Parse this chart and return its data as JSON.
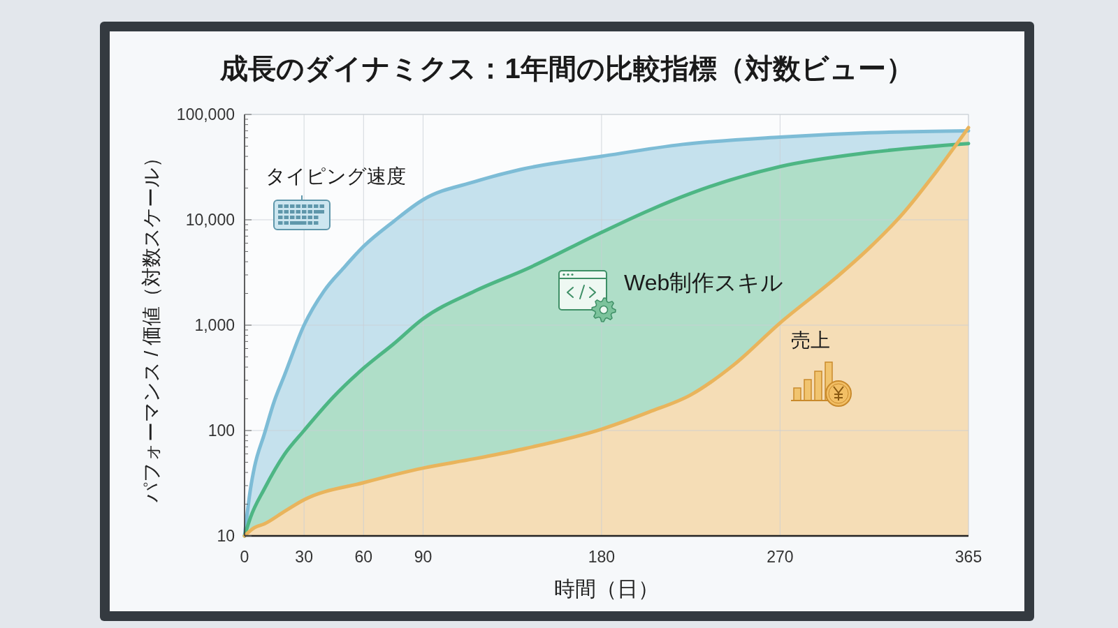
{
  "chart_data": {
    "type": "area",
    "title": "成長のダイナミクス：1年間の比較指標（対数ビュー）",
    "xlabel": "時間（日）",
    "ylabel": "パフォーマンス / 価値（対数スケール）",
    "log": "y",
    "grid": true,
    "xlim": [
      0,
      365
    ],
    "xticks": [
      0,
      30,
      60,
      90,
      180,
      270,
      365
    ],
    "ylim": [
      10,
      100000
    ],
    "yticks": [
      10,
      {
        "value": 20,
        "label": null
      },
      {
        "value": 30,
        "label": null
      },
      {
        "value": 40,
        "label": null
      },
      {
        "value": 50,
        "label": null
      },
      {
        "value": 60,
        "label": null
      },
      {
        "value": 70,
        "label": null
      },
      {
        "value": 80,
        "label": null
      },
      {
        "value": 90,
        "label": null
      },
      100,
      {
        "value": 200,
        "label": null
      },
      {
        "value": 300,
        "label": null
      },
      {
        "value": 400,
        "label": null
      },
      {
        "value": 500,
        "label": null
      },
      {
        "value": 600,
        "label": null
      },
      {
        "value": 700,
        "label": null
      },
      {
        "value": 800,
        "label": null
      },
      {
        "value": 900,
        "label": null
      },
      {
        "value": 1000,
        "label": "1,000"
      },
      {
        "value": 2000,
        "label": null
      },
      {
        "value": 3000,
        "label": null
      },
      {
        "value": 4000,
        "label": null
      },
      {
        "value": 5000,
        "label": null
      },
      {
        "value": 6000,
        "label": null
      },
      {
        "value": 7000,
        "label": null
      },
      {
        "value": 8000,
        "label": null
      },
      {
        "value": 9000,
        "label": null
      },
      {
        "value": 10000,
        "label": "10,000"
      },
      {
        "value": 20000,
        "label": null
      },
      {
        "value": 30000,
        "label": null
      },
      {
        "value": 40000,
        "label": null
      },
      {
        "value": 50000,
        "label": null
      },
      {
        "value": 60000,
        "label": null
      },
      {
        "value": 70000,
        "label": null
      },
      {
        "value": 80000,
        "label": null
      },
      {
        "value": 90000,
        "label": null
      },
      {
        "value": 100000,
        "label": "100,000"
      }
    ],
    "series": [
      {
        "name": "タイピング速度",
        "color": "#7dbcd6",
        "x": [
          0,
          3,
          5,
          10,
          15,
          20,
          30,
          40,
          50,
          60,
          75,
          90,
          116,
          139,
          180,
          221,
          270,
          315,
          365
        ],
        "values": [
          10,
          28,
          45,
          93,
          190,
          330,
          1000,
          2100,
          3500,
          5600,
          9600,
          15500,
          23000,
          30000,
          40000,
          52000,
          61000,
          67000,
          70000
        ]
      },
      {
        "name": "Web制作スキル",
        "color": "#4db684",
        "x": [
          0,
          3,
          10,
          20,
          30,
          45,
          60,
          75,
          90,
          116,
          142,
          180,
          204,
          225,
          270,
          315,
          365
        ],
        "values": [
          10,
          15,
          28,
          59,
          100,
          210,
          390,
          660,
          1150,
          2100,
          3400,
          7600,
          12300,
          17800,
          32000,
          43500,
          53000
        ]
      },
      {
        "name": "売上",
        "color": "#e9b45c",
        "x": [
          0,
          5,
          10,
          20,
          30,
          60,
          90,
          116,
          139,
          180,
          204,
          225,
          247,
          270,
          298,
          315,
          332,
          349,
          365
        ],
        "values": [
          10,
          12,
          13,
          17,
          22,
          32,
          44,
          54,
          66,
          103,
          150,
          218,
          425,
          1050,
          2800,
          5400,
          11500,
          29000,
          75000
        ]
      }
    ]
  }
}
